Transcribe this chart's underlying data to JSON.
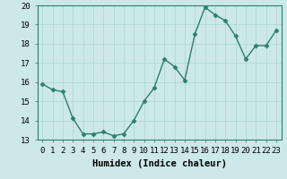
{
  "x": [
    0,
    1,
    2,
    3,
    4,
    5,
    6,
    7,
    8,
    9,
    10,
    11,
    12,
    13,
    14,
    15,
    16,
    17,
    18,
    19,
    20,
    21,
    22,
    23
  ],
  "y": [
    15.9,
    15.6,
    15.5,
    14.1,
    13.3,
    13.3,
    13.4,
    13.2,
    13.3,
    14.0,
    15.0,
    15.7,
    17.2,
    16.8,
    16.1,
    18.5,
    19.9,
    19.5,
    19.2,
    18.4,
    17.2,
    17.9,
    17.9,
    18.7
  ],
  "line_color": "#2e7d6e",
  "marker": "D",
  "markersize": 2.5,
  "linewidth": 1.0,
  "bg_color": "#cce8e8",
  "grid_color": "#aad4d4",
  "xlabel": "Humidex (Indice chaleur)",
  "xlim": [
    -0.5,
    23.5
  ],
  "ylim": [
    13,
    20
  ],
  "yticks": [
    13,
    14,
    15,
    16,
    17,
    18,
    19,
    20
  ],
  "xticks": [
    0,
    1,
    2,
    3,
    4,
    5,
    6,
    7,
    8,
    9,
    10,
    11,
    12,
    13,
    14,
    15,
    16,
    17,
    18,
    19,
    20,
    21,
    22,
    23
  ],
  "xlabel_fontsize": 7.5,
  "tick_fontsize": 6.5,
  "fig_bg_color": "#cce8e8",
  "spine_color": "#2e7d6e",
  "tick_color": "#2e7d6e"
}
